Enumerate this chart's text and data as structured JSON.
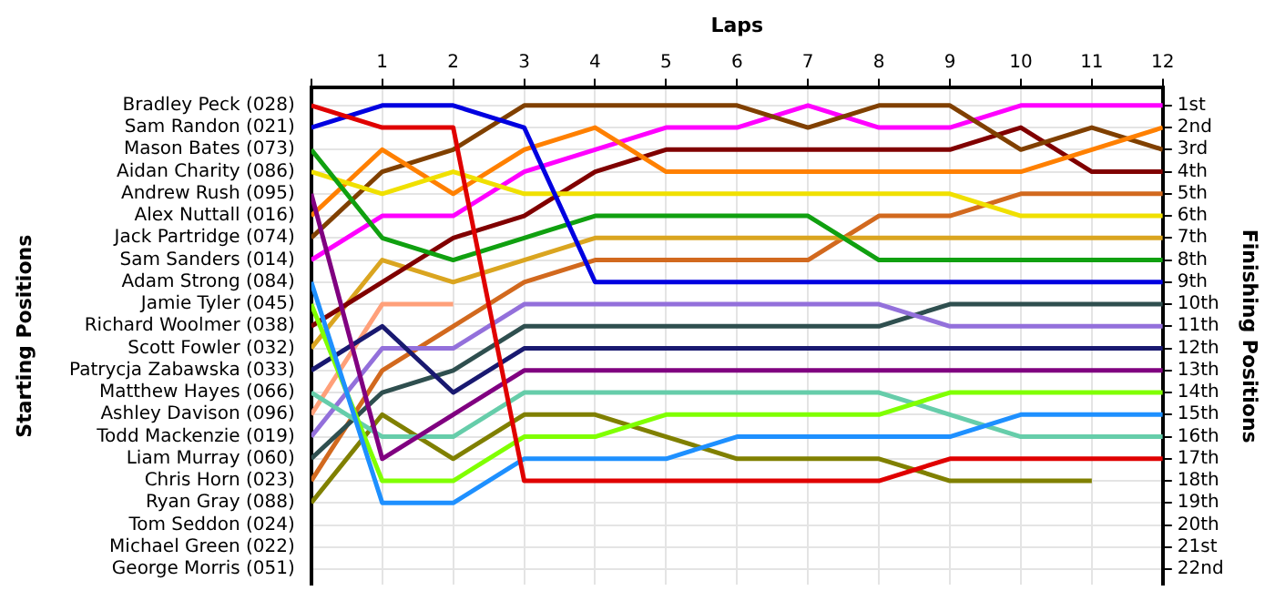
{
  "chart_data": {
    "type": "line",
    "xlabel": "Laps",
    "ylabel": "Finishing Positions",
    "annotations": [
      "Starting Positions"
    ],
    "x": [
      0,
      1,
      2,
      3,
      4,
      5,
      6,
      7,
      8,
      9,
      10,
      11,
      12
    ],
    "xlim": [
      0,
      12
    ],
    "xticks": [
      {
        "value": 0,
        "label": null
      },
      1,
      2,
      3,
      4,
      5,
      6,
      7,
      8,
      9,
      10,
      11,
      12
    ],
    "ylim": [
      22.7,
      0.2
    ],
    "yticks": [
      {
        "value": 1,
        "label": "1st"
      },
      {
        "value": 2,
        "label": "2nd"
      },
      {
        "value": 3,
        "label": "3rd"
      },
      {
        "value": 4,
        "label": "4th"
      },
      {
        "value": 5,
        "label": "5th"
      },
      {
        "value": 6,
        "label": "6th"
      },
      {
        "value": 7,
        "label": "7th"
      },
      {
        "value": 8,
        "label": "8th"
      },
      {
        "value": 9,
        "label": "9th"
      },
      {
        "value": 10,
        "label": "10th"
      },
      {
        "value": 11,
        "label": "11th"
      },
      {
        "value": 12,
        "label": "12th"
      },
      {
        "value": 13,
        "label": "13th"
      },
      {
        "value": 14,
        "label": "14th"
      },
      {
        "value": 15,
        "label": "15th"
      },
      {
        "value": 16,
        "label": "16th"
      },
      {
        "value": 17,
        "label": "17th"
      },
      {
        "value": 18,
        "label": "18th"
      },
      {
        "value": 19,
        "label": "19th"
      },
      {
        "value": 20,
        "label": "20th"
      },
      {
        "value": 21,
        "label": "21st"
      },
      {
        "value": 22,
        "label": "22nd"
      }
    ],
    "grid": true,
    "legend": false,
    "marker": "none",
    "line_style": "solid",
    "series": [
      {
        "name": "Bradley Peck (028)",
        "color": "#e00000",
        "values": [
          1,
          2,
          2,
          18,
          18,
          18,
          18,
          18,
          18,
          17,
          17,
          17,
          17
        ]
      },
      {
        "name": "Sam Randon (021)",
        "color": "#0000e0",
        "values": [
          2,
          1,
          1,
          2,
          9,
          9,
          9,
          9,
          9,
          9,
          9,
          9,
          9
        ]
      },
      {
        "name": "Mason Bates (073)",
        "color": "#10a010",
        "values": [
          3,
          7,
          8,
          7,
          6,
          6,
          6,
          6,
          8,
          8,
          8,
          8,
          8
        ]
      },
      {
        "name": "Aidan Charity (086)",
        "color": "#f0e000",
        "values": [
          4,
          5,
          4,
          5,
          5,
          5,
          5,
          5,
          5,
          5,
          6,
          6,
          6
        ]
      },
      {
        "name": "Andrew Rush (095)",
        "color": "#800080",
        "values": [
          5,
          17,
          15,
          13,
          13,
          13,
          13,
          13,
          13,
          13,
          13,
          13,
          13
        ]
      },
      {
        "name": "Alex Nuttall (016)",
        "color": "#ff8000",
        "values": [
          6,
          3,
          5,
          3,
          2,
          4,
          4,
          4,
          4,
          4,
          4,
          3,
          2
        ]
      },
      {
        "name": "Jack Partridge (074)",
        "color": "#804000",
        "values": [
          7,
          4,
          3,
          1,
          1,
          1,
          1,
          2,
          1,
          1,
          3,
          2,
          3
        ]
      },
      {
        "name": "Sam Sanders (014)",
        "color": "#ff00ff",
        "values": [
          8,
          6,
          6,
          4,
          3,
          2,
          2,
          1,
          2,
          2,
          1,
          1,
          1
        ]
      },
      {
        "name": "Adam Strong (084)",
        "color": "#1e90ff",
        "values": [
          9,
          19,
          19,
          17,
          17,
          17,
          16,
          16,
          16,
          16,
          15,
          15,
          15
        ]
      },
      {
        "name": "Jamie Tyler (045)",
        "color": "#80ff00",
        "values": [
          10,
          18,
          18,
          16,
          16,
          15,
          15,
          15,
          15,
          14,
          14,
          14,
          14
        ]
      },
      {
        "name": "Richard Woolmer (038)",
        "color": "#800000",
        "values": [
          11,
          9,
          7,
          6,
          4,
          3,
          3,
          3,
          3,
          3,
          2,
          4,
          4
        ]
      },
      {
        "name": "Scott Fowler (032)",
        "color": "#daa520",
        "values": [
          12,
          8,
          9,
          8,
          7,
          7,
          7,
          7,
          7,
          7,
          7,
          7,
          7
        ]
      },
      {
        "name": "Patrycja Zabawska (033)",
        "color": "#191970",
        "values": [
          13,
          11,
          14,
          12,
          12,
          12,
          12,
          12,
          12,
          12,
          12,
          12,
          12
        ]
      },
      {
        "name": "Matthew Hayes (066)",
        "color": "#66cdaa",
        "values": [
          14,
          16,
          16,
          14,
          14,
          14,
          14,
          14,
          14,
          15,
          16,
          16,
          16
        ]
      },
      {
        "name": "Ashley Davison (096)",
        "color": "#ffa07a",
        "values": [
          15,
          10,
          10,
          null,
          null,
          null,
          null,
          null,
          null,
          null,
          null,
          null,
          null
        ]
      },
      {
        "name": "Todd Mackenzie (019)",
        "color": "#9370db",
        "values": [
          16,
          12,
          12,
          10,
          10,
          10,
          10,
          10,
          10,
          11,
          11,
          11,
          11
        ]
      },
      {
        "name": "Liam Murray (060)",
        "color": "#2f4f4f",
        "values": [
          17,
          14,
          13,
          11,
          11,
          11,
          11,
          11,
          11,
          10,
          10,
          10,
          10
        ]
      },
      {
        "name": "Chris Horn (023)",
        "color": "#d2691e",
        "values": [
          18,
          13,
          11,
          9,
          8,
          8,
          8,
          8,
          6,
          6,
          5,
          5,
          5
        ]
      },
      {
        "name": "Ryan Gray (088)",
        "color": "#808000",
        "values": [
          19,
          15,
          17,
          15,
          15,
          16,
          17,
          17,
          17,
          18,
          18,
          18,
          null
        ]
      },
      {
        "name": "Tom Seddon (024)",
        "values": [
          null,
          null,
          null,
          null,
          null,
          null,
          null,
          null,
          null,
          null,
          null,
          null,
          null
        ]
      },
      {
        "name": "Michael Green (022)",
        "values": [
          null,
          null,
          null,
          null,
          null,
          null,
          null,
          null,
          null,
          null,
          null,
          null,
          null
        ]
      },
      {
        "name": "George Morris (051)",
        "values": [
          null,
          null,
          null,
          null,
          null,
          null,
          null,
          null,
          null,
          null,
          null,
          null,
          null
        ]
      }
    ]
  }
}
